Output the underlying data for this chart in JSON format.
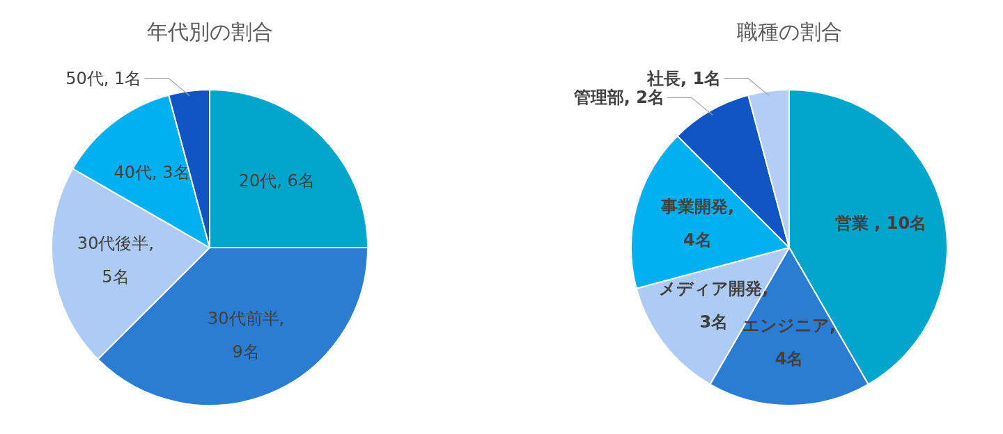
{
  "chart_data": [
    {
      "type": "pie",
      "title": "年代別の割合",
      "categories": [
        "20代",
        "30代前半",
        "30代後半",
        "40代",
        "50代"
      ],
      "values": [
        6,
        9,
        5,
        3,
        1
      ],
      "colors": [
        "#00a5cc",
        "#2b7cd3",
        "#aecbf5",
        "#00b0f0",
        "#1155c4"
      ],
      "value_labels": [
        ", 6名",
        ", 9名",
        ", 5名",
        ", 3名",
        ", 1名"
      ]
    },
    {
      "type": "pie",
      "title": "職種の割合",
      "categories": [
        "営業",
        "エンジニア",
        "メディア開発",
        "事業開発",
        "管理部",
        "社長"
      ],
      "values": [
        10,
        4,
        3,
        4,
        2,
        1
      ],
      "colors": [
        "#00a5cc",
        "#2b7cd3",
        "#aecbf5",
        "#00b0f0",
        "#1155c4",
        "#b4cdf6"
      ],
      "value_labels": [
        " , 10名",
        ", 4名",
        ", 3名",
        ", 4名",
        ", 2名",
        ", 1名"
      ]
    }
  ]
}
